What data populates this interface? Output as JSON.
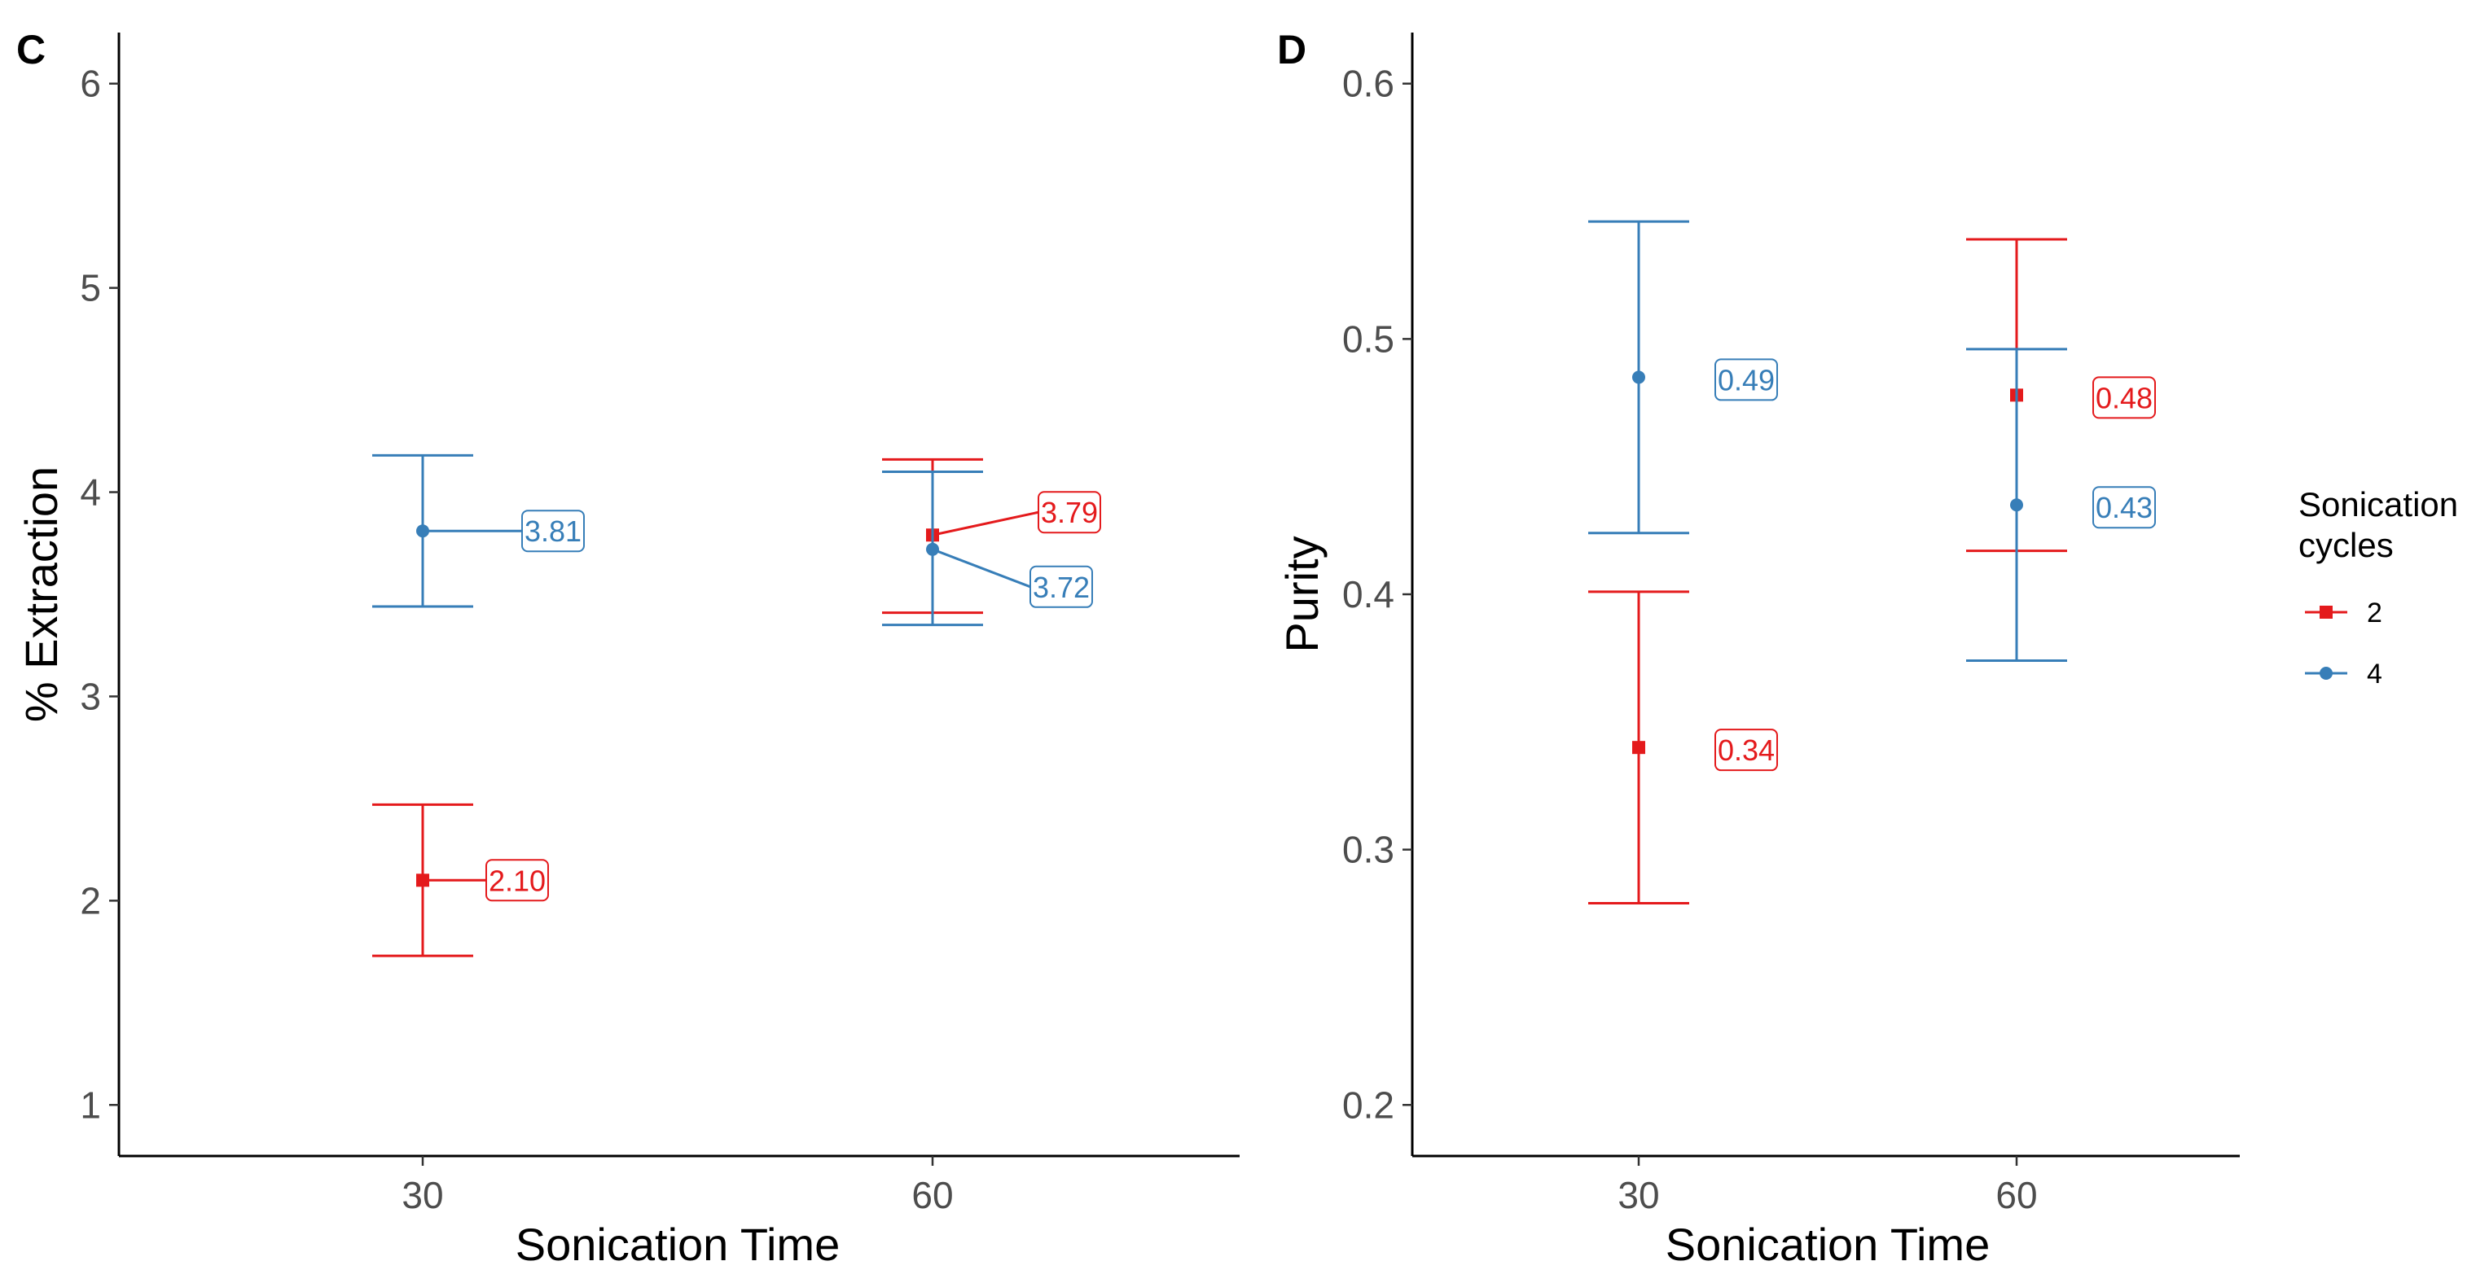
{
  "colors": {
    "cycles_2": "#e41a1c",
    "cycles_4": "#377eb8"
  },
  "legend": {
    "title_line1": "Sonication",
    "title_line2": "cycles",
    "items": [
      "2",
      "4"
    ]
  },
  "chart_data": [
    {
      "type": "errorbar",
      "panel_label": "C",
      "xlabel": "Sonication Time",
      "ylabel": "% Extraction",
      "categories": [
        "30",
        "60"
      ],
      "ylim": [
        0.75,
        6.25
      ],
      "yticks": [
        1,
        2,
        3,
        4,
        5,
        6
      ],
      "ytick_labels": [
        "1",
        "2",
        "3",
        "4",
        "5",
        "6"
      ],
      "series": [
        {
          "name": "2",
          "color_key": "cycles_2",
          "shape": "square",
          "points": [
            {
              "x": "30",
              "value": 2.1,
              "lower": 1.73,
              "upper": 2.47,
              "label": "2.10"
            },
            {
              "x": "60",
              "value": 3.79,
              "lower": 3.41,
              "upper": 4.16,
              "label": "3.79"
            }
          ]
        },
        {
          "name": "4",
          "color_key": "cycles_4",
          "shape": "circle",
          "points": [
            {
              "x": "30",
              "value": 3.81,
              "lower": 3.44,
              "upper": 4.18,
              "label": "3.81"
            },
            {
              "x": "60",
              "value": 3.72,
              "lower": 3.35,
              "upper": 4.1,
              "label": "3.72"
            }
          ]
        }
      ]
    },
    {
      "type": "errorbar",
      "panel_label": "D",
      "xlabel": "Sonication Time",
      "ylabel": "Purity",
      "categories": [
        "30",
        "60"
      ],
      "ylim": [
        0.18,
        0.62
      ],
      "yticks": [
        0.2,
        0.3,
        0.4,
        0.5,
        0.6
      ],
      "ytick_labels": [
        "0.2",
        "0.3",
        "0.4",
        "0.5",
        "0.6"
      ],
      "series": [
        {
          "name": "2",
          "color_key": "cycles_2",
          "shape": "square",
          "points": [
            {
              "x": "30",
              "value": 0.34,
              "lower": 0.279,
              "upper": 0.401,
              "label": "0.34"
            },
            {
              "x": "60",
              "value": 0.478,
              "lower": 0.417,
              "upper": 0.539,
              "label": "0.48"
            }
          ]
        },
        {
          "name": "4",
          "color_key": "cycles_4",
          "shape": "circle",
          "points": [
            {
              "x": "30",
              "value": 0.485,
              "lower": 0.424,
              "upper": 0.546,
              "label": "0.49"
            },
            {
              "x": "60",
              "value": 0.435,
              "lower": 0.374,
              "upper": 0.496,
              "label": "0.43"
            }
          ]
        }
      ]
    }
  ]
}
